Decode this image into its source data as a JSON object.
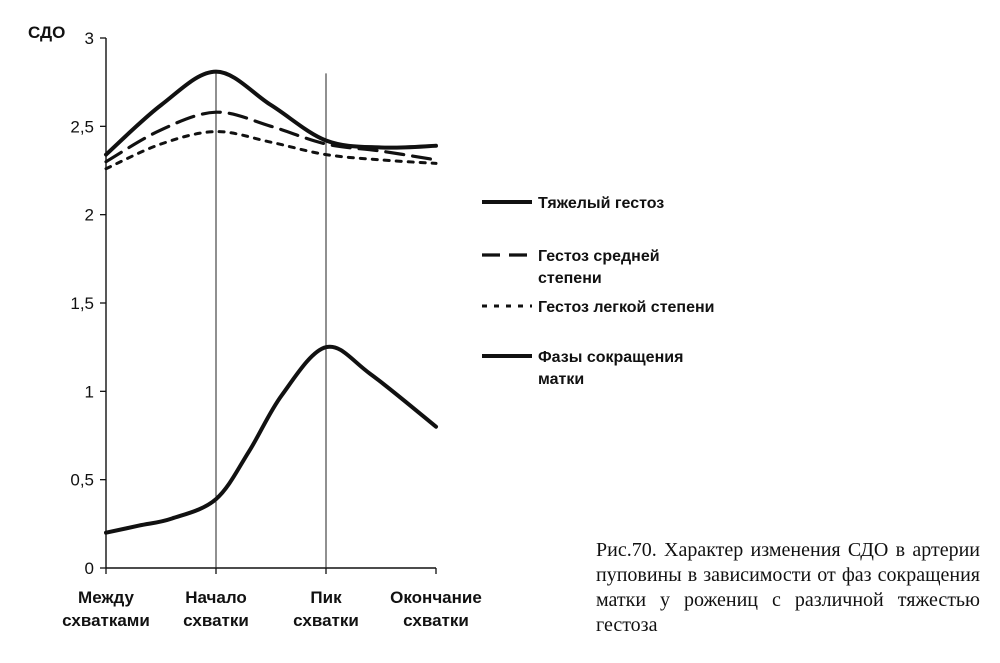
{
  "caption": "Рис.70. Характер изменения СДО в артерии пуповины в зависимости от фаз сокращения матки у рожениц с различной тяжестью гестоза",
  "chart_data": {
    "type": "line",
    "ylabel": "СДО",
    "ylim": [
      0,
      3
    ],
    "yticks": [
      "0",
      "0,5",
      "1",
      "1,5",
      "2",
      "2,5",
      "3"
    ],
    "categories": [
      [
        "Между",
        "схватками"
      ],
      [
        "Начало",
        "схватки"
      ],
      [
        "Пик",
        "схватки"
      ],
      [
        "Окончание",
        "схватки"
      ]
    ],
    "x": [
      0,
      1,
      2,
      3
    ],
    "vertical_guides_at": [
      1,
      2
    ],
    "series": [
      {
        "name": [
          "Тяжелый гестоз"
        ],
        "style": "solid-thick",
        "color": "#111111",
        "points": [
          [
            0,
            2.34
          ],
          [
            0.5,
            2.62
          ],
          [
            1,
            2.81
          ],
          [
            1.5,
            2.62
          ],
          [
            2,
            2.42
          ],
          [
            2.5,
            2.38
          ],
          [
            3,
            2.39
          ]
        ]
      },
      {
        "name": [
          "Гестоз средней",
          "степени"
        ],
        "style": "dashed",
        "color": "#111111",
        "points": [
          [
            0,
            2.3
          ],
          [
            0.5,
            2.48
          ],
          [
            1,
            2.58
          ],
          [
            1.5,
            2.5
          ],
          [
            2,
            2.4
          ],
          [
            2.5,
            2.36
          ],
          [
            3,
            2.31
          ]
        ]
      },
      {
        "name": [
          "Гестоз легкой степени"
        ],
        "style": "dotted",
        "color": "#111111",
        "points": [
          [
            0,
            2.26
          ],
          [
            0.5,
            2.4
          ],
          [
            1,
            2.47
          ],
          [
            1.5,
            2.41
          ],
          [
            2,
            2.34
          ],
          [
            2.5,
            2.31
          ],
          [
            3,
            2.29
          ]
        ]
      },
      {
        "name": [
          "Фазы сокращения",
          "матки"
        ],
        "style": "solid-thick",
        "color": "#111111",
        "points": [
          [
            0,
            0.2
          ],
          [
            0.3,
            0.24
          ],
          [
            0.6,
            0.28
          ],
          [
            1,
            0.39
          ],
          [
            1.3,
            0.66
          ],
          [
            1.6,
            0.98
          ],
          [
            2,
            1.25
          ],
          [
            2.4,
            1.1
          ],
          [
            3,
            0.8
          ]
        ]
      }
    ],
    "grid": false,
    "legend_position": "right"
  }
}
